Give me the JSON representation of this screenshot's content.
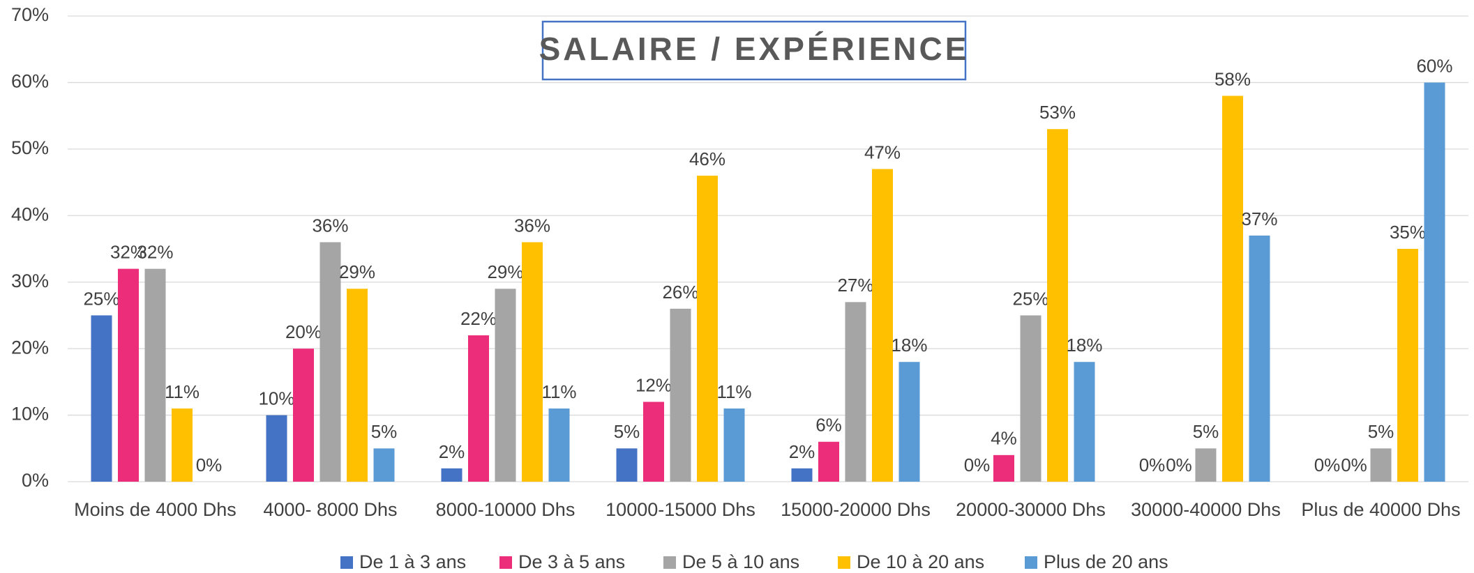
{
  "chart_data": {
    "type": "bar",
    "title": "SALAIRE / EXPÉRIENCE",
    "categories": [
      "Moins de 4000 Dhs",
      "4000- 8000 Dhs",
      "8000-10000 Dhs",
      "10000-15000 Dhs",
      "15000-20000 Dhs",
      "20000-30000 Dhs",
      "30000-40000 Dhs",
      "Plus de 40000 Dhs"
    ],
    "series": [
      {
        "name": "De 1 à 3 ans",
        "color": "#4472c4",
        "values": [
          25,
          10,
          2,
          5,
          2,
          0,
          0,
          0
        ],
        "value_labels": [
          "25%",
          "10%",
          "2%",
          "5%",
          "2%",
          "0%",
          "0%",
          "0%"
        ]
      },
      {
        "name": "De 3 à 5 ans",
        "color": "#ec2d7a",
        "values": [
          32,
          20,
          22,
          12,
          6,
          4,
          0,
          0
        ],
        "value_labels": [
          "32%",
          "20%",
          "22%",
          "12%",
          "6%",
          "4%",
          "0%",
          "0%"
        ]
      },
      {
        "name": "De 5 à 10 ans",
        "color": "#a5a5a5",
        "values": [
          32,
          36,
          29,
          26,
          27,
          25,
          5,
          5
        ],
        "value_labels": [
          "32%",
          "36%",
          "29%",
          "26%",
          "27%",
          "25%",
          "5%",
          "5%"
        ]
      },
      {
        "name": "De 10 à 20 ans",
        "color": "#ffc000",
        "values": [
          11,
          29,
          36,
          46,
          47,
          53,
          58,
          35
        ],
        "value_labels": [
          "11%",
          "29%",
          "36%",
          "46%",
          "47%",
          "53%",
          "58%",
          "35%"
        ]
      },
      {
        "name": "Plus de 20 ans",
        "color": "#5b9bd5",
        "values": [
          0,
          5,
          11,
          11,
          18,
          18,
          37,
          60
        ],
        "value_labels": [
          "0%",
          "5%",
          "11%",
          "11%",
          "18%",
          "18%",
          "37%",
          "60%"
        ]
      }
    ],
    "ylim": [
      0,
      70
    ],
    "yticks": [
      {
        "value": 0,
        "label": "0%"
      },
      {
        "value": 10,
        "label": "10%"
      },
      {
        "value": 20,
        "label": "20%"
      },
      {
        "value": 30,
        "label": "30%"
      },
      {
        "value": 40,
        "label": "40%"
      },
      {
        "value": 50,
        "label": "50%"
      },
      {
        "value": 60,
        "label": "60%"
      },
      {
        "value": 70,
        "label": "70%"
      }
    ],
    "grid": true
  }
}
